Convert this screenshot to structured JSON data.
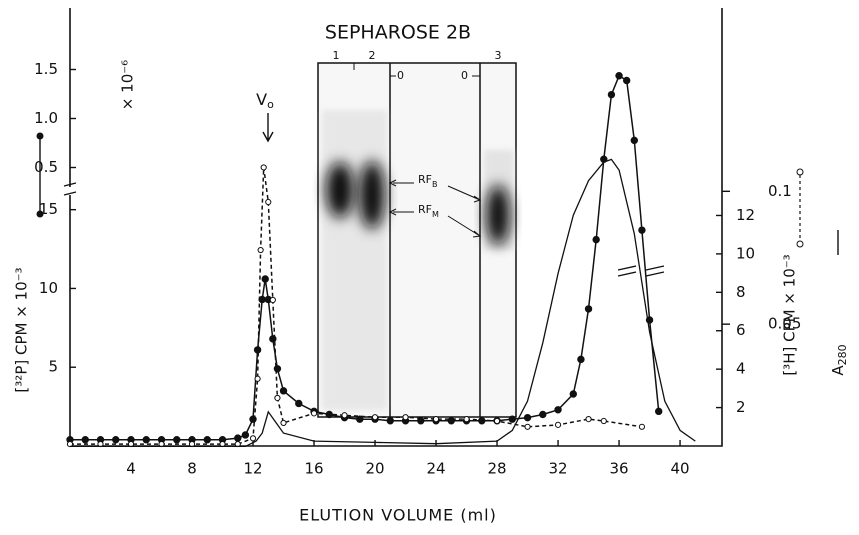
{
  "chart_data": {
    "type": "line",
    "title": "SEPHAROSE 2B",
    "x_label": "ELUTION VOLUME (ml)",
    "y_label": "[³²P] CPM × 10⁻³",
    "y_upper_label": "× 10⁻⁶",
    "y2_label": "[³H] CPM × 10⁻³",
    "y3_label": {
      "main": "A",
      "sub": "280"
    },
    "annotation_v0": {
      "main": "V",
      "sub": "o"
    },
    "xlim": [
      0,
      42.75
    ],
    "xticks": [
      4,
      8,
      12,
      16,
      20,
      24,
      28,
      32,
      36,
      40
    ],
    "ylim": [
      0,
      27.8
    ],
    "yticks": [
      5,
      10,
      15
    ],
    "y_upper_lim": [
      0.25,
      1.75
    ],
    "y_upper_ticks": [
      0.5,
      {
        "value": 1.0,
        "label": "1.0"
      },
      1.5
    ],
    "y2lim": [
      0,
      22.8
    ],
    "y2ticks": [
      2,
      4,
      6,
      8,
      10,
      12
    ],
    "y3lim": [
      0,
      0.169
    ],
    "y3ticks": [
      0.05,
      0.1
    ],
    "inset": {
      "lanes": [
        "1",
        "2",
        "3"
      ],
      "origin_marks": [
        "0",
        "0"
      ],
      "bands": [
        {
          "main": "RF",
          "sub": "B"
        },
        {
          "main": "RF",
          "sub": "M"
        }
      ]
    },
    "series": [
      {
        "axis": "y",
        "marker": "filled",
        "dash": false,
        "color": "#111",
        "x": [
          0,
          1,
          2,
          3,
          4,
          5,
          6,
          7,
          8,
          9,
          10,
          11,
          11.5,
          12,
          12.3,
          12.6,
          12.8,
          13,
          13.3,
          13.6,
          14,
          15,
          16,
          17,
          18,
          19,
          20,
          21,
          22,
          23,
          24,
          25,
          26,
          27,
          28,
          29,
          30,
          31,
          32,
          33,
          33.5,
          34,
          34.5,
          35,
          35.5,
          36,
          36.5,
          37,
          37.5,
          38,
          38.6
        ],
        "values": [
          0.4,
          0.4,
          0.4,
          0.4,
          0.4,
          0.4,
          0.4,
          0.4,
          0.4,
          0.4,
          0.4,
          0.5,
          0.7,
          1.7,
          6.1,
          9.3,
          10.6,
          9.3,
          6.8,
          4.9,
          3.5,
          2.7,
          2.2,
          2.0,
          1.8,
          1.7,
          1.7,
          1.6,
          1.6,
          1.6,
          1.6,
          1.6,
          1.6,
          1.6,
          1.6,
          1.7,
          1.8,
          2.0,
          2.3,
          3.3,
          5.5,
          8.7,
          13.1,
          18.2,
          22.3,
          23.5,
          23.2,
          19.4,
          13.7,
          8.0,
          2.2
        ]
      },
      {
        "axis": "y2",
        "marker": "open",
        "dash": true,
        "color": "#111",
        "x": [
          0,
          2,
          4,
          6,
          8,
          10,
          11,
          12,
          12.3,
          12.5,
          12.7,
          13,
          13.3,
          13.6,
          14,
          16,
          18,
          20,
          22,
          24,
          26,
          28,
          30,
          32,
          34,
          35,
          37.5
        ],
        "values": [
          0.1,
          0.1,
          0.1,
          0.1,
          0.1,
          0.1,
          0.1,
          0.4,
          3.5,
          10.2,
          14.5,
          12.7,
          7.6,
          2.5,
          1.2,
          1.7,
          1.6,
          1.5,
          1.5,
          1.4,
          1.4,
          1.3,
          1.0,
          1.1,
          1.4,
          1.3,
          1.0
        ]
      },
      {
        "axis": "y3",
        "marker": "none",
        "dash": false,
        "color": "#111",
        "x": [
          0,
          4,
          8,
          11.5,
          12.2,
          12.6,
          13,
          13.5,
          14,
          16,
          20,
          24,
          28,
          29,
          30,
          31,
          32,
          33,
          34,
          35,
          35.5,
          36,
          37,
          38,
          39,
          40,
          41
        ],
        "values": [
          0.004,
          0.004,
          0.004,
          0.004,
          0.006,
          0.009,
          0.017,
          0.013,
          0.009,
          0.006,
          0.0055,
          0.005,
          0.006,
          0.01,
          0.021,
          0.043,
          0.069,
          0.091,
          0.104,
          0.111,
          0.112,
          0.108,
          0.084,
          0.047,
          0.021,
          0.01,
          0.006
        ]
      }
    ]
  }
}
